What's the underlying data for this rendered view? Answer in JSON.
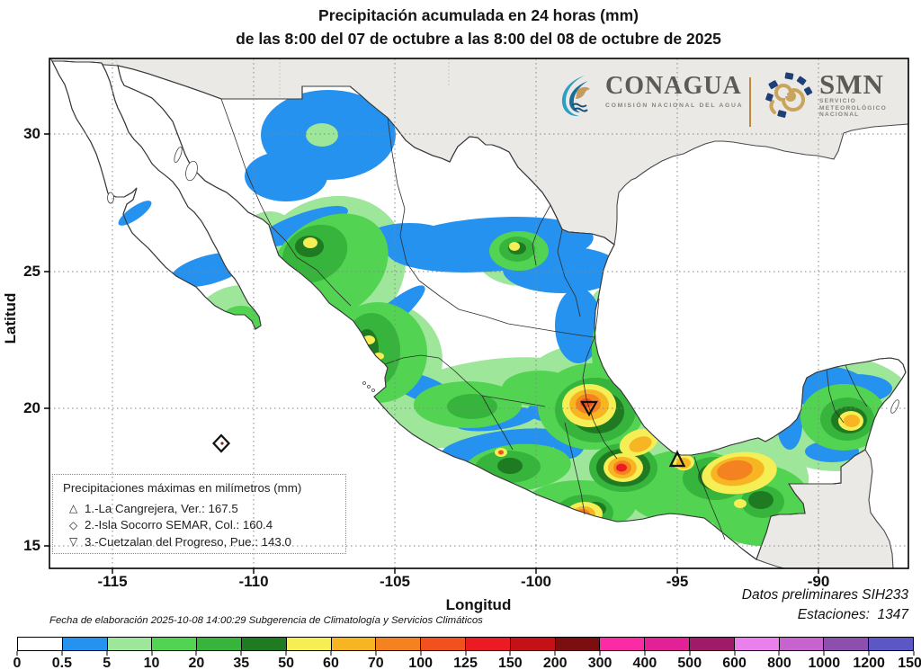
{
  "title": {
    "line1": "Precipitación acumulada en 24 horas (mm)",
    "line2": "de las 8:00 del 07 de octubre a las 8:00 del 08 de octubre de 2025"
  },
  "branding": {
    "conagua": {
      "name": "CONAGUA",
      "subtitle": "COMISIÓN NACIONAL DEL AGUA"
    },
    "smn": {
      "name": "SMN",
      "subtitle_lines": [
        "SERVICIO",
        "METEOROLÓGICO",
        "NACIONAL"
      ]
    }
  },
  "axes": {
    "x_label": "Longitud",
    "y_label": "Latitud",
    "x_ticks": [
      "-115",
      "-110",
      "-105",
      "-100",
      "-95",
      "-90"
    ],
    "y_ticks": [
      "30",
      "25",
      "20",
      "15"
    ]
  },
  "legend": {
    "title": "Precipitaciones máximas en milímetros (mm)",
    "items": [
      {
        "symbol": "△",
        "text": "1.-La Cangrejera, Ver.: 167.5"
      },
      {
        "symbol": "◇",
        "text": "2.-Isla Socorro SEMAR, Col.: 160.4"
      },
      {
        "symbol": "▽",
        "text": "3.-Cuetzalan del Progreso, Pue.: 143.0"
      }
    ]
  },
  "footer": {
    "elaboration": "Fecha de elaboración 2025-10-08 14:00:29 Subgerencia de Climatología y Servicios Climáticos",
    "preliminary": "Datos preliminares SIH233",
    "stations": "Estaciones:  1347"
  },
  "chart_data": {
    "type": "heatmap",
    "subtype": "geographic-precipitation-contour-map",
    "region": "México",
    "lon_range": [
      -117.3,
      -86.9
    ],
    "lat_range": [
      14.1,
      32.8
    ],
    "grid_step_deg": 5,
    "colorbar": {
      "unit": "mm",
      "tick_labels": [
        "0",
        "0.5",
        "5",
        "10",
        "20",
        "35",
        "50",
        "60",
        "70",
        "100",
        "125",
        "150",
        "200",
        "300",
        "400",
        "500",
        "600",
        "800",
        "1000",
        "1200",
        "1500"
      ],
      "colors": [
        "#ffffff",
        "#2492ee",
        "#9de69a",
        "#52d352",
        "#37b43c",
        "#1e7b21",
        "#f5ee55",
        "#f7b523",
        "#f58220",
        "#f0511d",
        "#ec1b23",
        "#c41117",
        "#7c0d10",
        "#fb2ba6",
        "#e22196",
        "#9f1b68",
        "#ea80ec",
        "#c763cf",
        "#8d4fae",
        "#5b57c4"
      ],
      "orientation": "horizontal"
    },
    "stations_max": [
      {
        "id": 1,
        "symbol": "△",
        "name": "La Cangrejera, Ver.",
        "value_mm": 167.5
      },
      {
        "id": 2,
        "symbol": "◇",
        "name": "Isla Socorro SEMAR, Col.",
        "value_mm": 160.4
      },
      {
        "id": 3,
        "symbol": "▽",
        "name": "Cuetzalan del Progreso, Pue.",
        "value_mm": 143.0
      }
    ],
    "stations_count": 1347
  }
}
